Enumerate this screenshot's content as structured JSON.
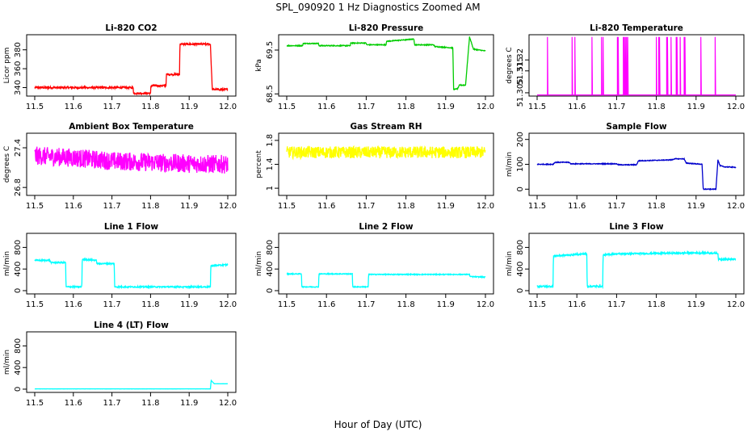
{
  "figure": {
    "title": "SPL_090920  1 Hz Diagnostics Zoomed AM",
    "xlabel": "Hour of Day (UTC)"
  },
  "chart_data": [
    {
      "type": "line",
      "title": "Li-820 CO2",
      "ylabel": "Licor ppm",
      "color": "#ff0000",
      "xlim": [
        11.5,
        12.0
      ],
      "ylim": [
        331,
        396
      ],
      "xticks": [
        "11.5",
        "11.6",
        "11.7",
        "11.8",
        "11.9",
        "12.0"
      ],
      "yticks": [
        340,
        360,
        380
      ],
      "noise": 1.0,
      "series": [
        {
          "x": [
            11.5,
            11.755,
            11.756,
            11.8,
            11.801,
            11.84,
            11.841,
            11.875,
            11.876,
            11.955,
            11.958,
            11.96,
            12.0
          ],
          "y": [
            340,
            340,
            334,
            334,
            342,
            342,
            354,
            354,
            386,
            386,
            356,
            338,
            338
          ]
        }
      ]
    },
    {
      "type": "line",
      "title": "Li-820 Pressure",
      "ylabel": "kPa",
      "color": "#00cc00",
      "xlim": [
        11.5,
        12.0
      ],
      "ylim": [
        68.45,
        69.85
      ],
      "xticks": [
        "11.5",
        "11.6",
        "11.7",
        "11.8",
        "11.9",
        "12.0"
      ],
      "yticks": [
        68.5,
        69.5
      ],
      "noise": 0.01,
      "series": [
        {
          "x": [
            11.5,
            11.54,
            11.541,
            11.58,
            11.581,
            11.66,
            11.661,
            11.7,
            11.701,
            11.75,
            11.751,
            11.82,
            11.822,
            11.87,
            11.872,
            11.918,
            11.92,
            11.93,
            11.935,
            11.95,
            11.96,
            11.97,
            12.0
          ],
          "y": [
            69.6,
            69.6,
            69.65,
            69.65,
            69.6,
            69.6,
            69.66,
            69.66,
            69.62,
            69.62,
            69.7,
            69.75,
            69.62,
            69.62,
            69.58,
            69.55,
            68.6,
            68.62,
            68.7,
            68.7,
            69.8,
            69.52,
            69.48
          ]
        }
      ]
    },
    {
      "type": "line",
      "title": "Li-820 Temperature",
      "ylabel": "degrees C",
      "color": "#ff00ff",
      "xlim": [
        11.5,
        12.0
      ],
      "ylim": [
        51.3035,
        51.3315
      ],
      "xticks": [
        "11.5",
        "11.6",
        "11.7",
        "11.8",
        "11.9",
        "12.0"
      ],
      "yticks": [
        51.305,
        51.315,
        51.32
      ],
      "spikes": [
        11.526,
        11.588,
        11.595,
        11.638,
        11.662,
        11.666,
        11.702,
        11.704,
        11.717,
        11.719,
        11.722,
        11.725,
        11.728,
        11.8,
        11.806,
        11.808,
        11.826,
        11.828,
        11.837,
        11.85,
        11.852,
        11.86,
        11.87,
        11.872,
        11.912,
        11.948
      ],
      "baseline": 51.304,
      "spike_top": 51.3305
    },
    {
      "type": "line",
      "title": "Ambient Box Temperature",
      "ylabel": "degrees C",
      "color": "#ff00ff",
      "xlim": [
        11.5,
        12.0
      ],
      "ylim": [
        26.68,
        27.62
      ],
      "xticks": [
        "11.5",
        "11.6",
        "11.7",
        "11.8",
        "11.9",
        "12.0"
      ],
      "yticks": [
        26.8,
        27.4
      ],
      "noise": 0.14,
      "series": [
        {
          "x": [
            11.5,
            11.6,
            11.7,
            11.8,
            11.9,
            12.0
          ],
          "y": [
            27.28,
            27.25,
            27.2,
            27.18,
            27.16,
            27.15
          ]
        }
      ]
    },
    {
      "type": "line",
      "title": "Gas Stream RH",
      "ylabel": "percent",
      "color": "#ffff00",
      "xlim": [
        11.5,
        12.0
      ],
      "ylim": [
        0.88,
        1.92
      ],
      "xticks": [
        "11.5",
        "11.6",
        "11.7",
        "11.8",
        "11.9",
        "12.0"
      ],
      "yticks": [
        1.0,
        1.4,
        1.8
      ],
      "noise": 0.1,
      "series": [
        {
          "x": [
            11.5,
            11.6,
            11.7,
            11.8,
            11.9,
            12.0
          ],
          "y": [
            1.6,
            1.6,
            1.6,
            1.6,
            1.6,
            1.6
          ]
        }
      ]
    },
    {
      "type": "line",
      "title": "Sample Flow",
      "ylabel": "ml/min",
      "color": "#0000cc",
      "xlim": [
        11.5,
        12.0
      ],
      "ylim": [
        -25,
        225
      ],
      "xticks": [
        "11.5",
        "11.6",
        "11.7",
        "11.8",
        "11.9",
        "12.0"
      ],
      "yticks": [
        0,
        100,
        200
      ],
      "noise": 1.5,
      "series": [
        {
          "x": [
            11.5,
            11.54,
            11.545,
            11.58,
            11.585,
            11.7,
            11.705,
            11.75,
            11.755,
            11.84,
            11.845,
            11.87,
            11.875,
            11.915,
            11.918,
            11.95,
            11.955,
            11.96,
            11.97,
            12.0
          ],
          "y": [
            100,
            100,
            108,
            108,
            102,
            102,
            98,
            98,
            114,
            118,
            122,
            122,
            105,
            100,
            0,
            0,
            118,
            95,
            90,
            88
          ]
        }
      ]
    },
    {
      "type": "line",
      "title": "Line 1 Flow",
      "ylabel": "ml/min",
      "color": "#00ffff",
      "xlim": [
        11.5,
        12.0
      ],
      "ylim": [
        -60,
        1060
      ],
      "xticks": [
        "11.5",
        "11.6",
        "11.7",
        "11.8",
        "11.9",
        "12.0"
      ],
      "yticks": [
        0,
        400,
        800
      ],
      "noise": 12,
      "series": [
        {
          "x": [
            11.5,
            11.54,
            11.541,
            11.58,
            11.581,
            11.622,
            11.623,
            11.66,
            11.661,
            11.706,
            11.707,
            11.955,
            11.956,
            12.0
          ],
          "y": [
            560,
            560,
            520,
            520,
            70,
            70,
            580,
            560,
            500,
            500,
            70,
            70,
            460,
            480
          ]
        }
      ]
    },
    {
      "type": "line",
      "title": "Line 2 Flow",
      "ylabel": "ml/min",
      "color": "#00ffff",
      "xlim": [
        11.5,
        12.0
      ],
      "ylim": [
        -60,
        1060
      ],
      "xticks": [
        "11.5",
        "11.6",
        "11.7",
        "11.8",
        "11.9",
        "12.0"
      ],
      "yticks": [
        0,
        400,
        800
      ],
      "noise": 8,
      "series": [
        {
          "x": [
            11.5,
            11.537,
            11.538,
            11.58,
            11.581,
            11.665,
            11.666,
            11.705,
            11.706,
            11.96,
            11.961,
            12.0
          ],
          "y": [
            310,
            310,
            70,
            70,
            310,
            310,
            70,
            70,
            300,
            300,
            260,
            250
          ]
        }
      ]
    },
    {
      "type": "line",
      "title": "Line 3 Flow",
      "ylabel": "ml/min",
      "color": "#00ffff",
      "xlim": [
        11.5,
        12.0
      ],
      "ylim": [
        -60,
        1060
      ],
      "xticks": [
        "11.5",
        "11.6",
        "11.7",
        "11.8",
        "11.9",
        "12.0"
      ],
      "yticks": [
        0,
        400,
        800
      ],
      "noise": 15,
      "series": [
        {
          "x": [
            11.5,
            11.54,
            11.541,
            11.58,
            11.62,
            11.625,
            11.626,
            11.665,
            11.666,
            11.7,
            11.8,
            11.92,
            11.955,
            11.956,
            12.0
          ],
          "y": [
            80,
            80,
            640,
            660,
            680,
            680,
            80,
            80,
            660,
            680,
            690,
            700,
            690,
            580,
            580
          ]
        }
      ]
    },
    {
      "type": "line",
      "title": "Line 4 (LT) Flow",
      "ylabel": "ml/min",
      "color": "#00ffff",
      "xlim": [
        11.5,
        12.0
      ],
      "ylim": [
        -60,
        1060
      ],
      "xticks": [
        "11.5",
        "11.6",
        "11.7",
        "11.8",
        "11.9",
        "12.0"
      ],
      "yticks": [
        0,
        400,
        800
      ],
      "noise": 1,
      "series": [
        {
          "x": [
            11.5,
            11.955,
            11.957,
            11.965,
            12.0
          ],
          "y": [
            5,
            5,
            160,
            100,
            100
          ]
        }
      ]
    }
  ]
}
